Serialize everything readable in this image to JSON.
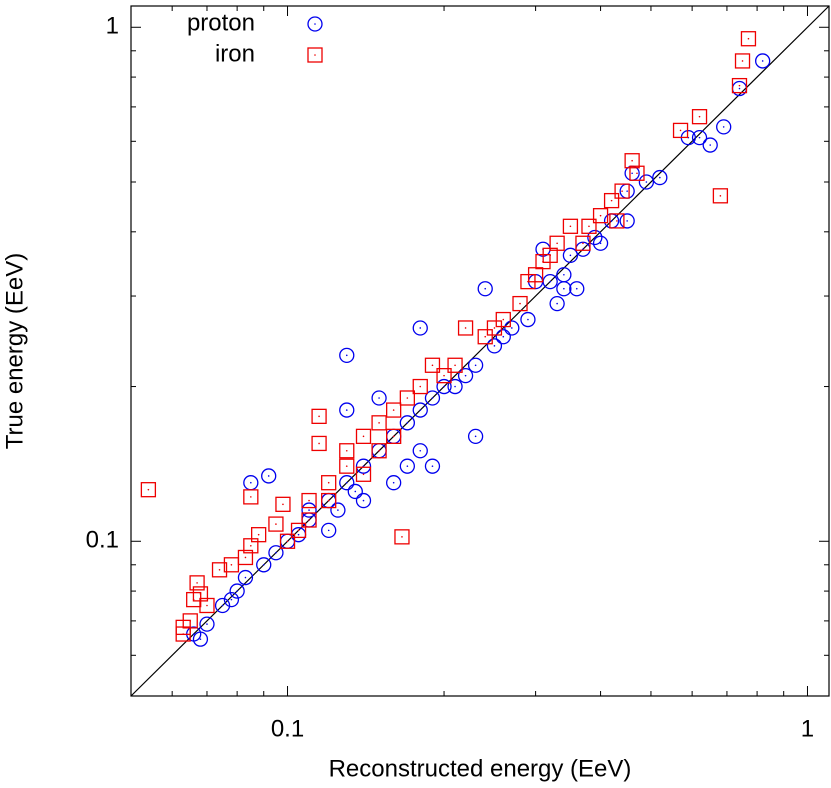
{
  "chart_data": {
    "type": "scatter",
    "xlabel": "Reconstructed energy (EeV)",
    "ylabel": "True energy (EeV)",
    "xscale": "log",
    "yscale": "log",
    "xlim": [
      0.05,
      1.1
    ],
    "ylim": [
      0.05,
      1.1
    ],
    "xticks": [
      0.1,
      1
    ],
    "yticks": [
      0.1,
      1
    ],
    "xminorticks": [
      0.06,
      0.07,
      0.08,
      0.09,
      0.2,
      0.3,
      0.4,
      0.5,
      0.6,
      0.7,
      0.8,
      0.9
    ],
    "yminorticks": [
      0.06,
      0.07,
      0.08,
      0.09,
      0.2,
      0.3,
      0.4,
      0.5,
      0.6,
      0.7,
      0.8,
      0.9
    ],
    "diagonal": true,
    "diagonal_color": "#000000",
    "legend": "top-left",
    "series": [
      {
        "name": "proton",
        "color": "#0000ee",
        "marker": "circle",
        "x": [
          0.82,
          0.74,
          0.69,
          0.65,
          0.62,
          0.59,
          0.52,
          0.49,
          0.46,
          0.45,
          0.45,
          0.42,
          0.4,
          0.39,
          0.37,
          0.35,
          0.34,
          0.34,
          0.33,
          0.36,
          0.32,
          0.31,
          0.3,
          0.29,
          0.27,
          0.26,
          0.25,
          0.24,
          0.23,
          0.22,
          0.21,
          0.2,
          0.19,
          0.18,
          0.18,
          0.17,
          0.16,
          0.23,
          0.15,
          0.15,
          0.14,
          0.19,
          0.13,
          0.13,
          0.13,
          0.12,
          0.12,
          0.11,
          0.105,
          0.1,
          0.095,
          0.092,
          0.085,
          0.09,
          0.083,
          0.08,
          0.078,
          0.075,
          0.07,
          0.066,
          0.068,
          0.11,
          0.14,
          0.16,
          0.17,
          0.18,
          0.125,
          0.135
        ],
        "values": [
          0.86,
          0.76,
          0.64,
          0.59,
          0.61,
          0.61,
          0.51,
          0.5,
          0.52,
          0.42,
          0.48,
          0.42,
          0.38,
          0.39,
          0.37,
          0.36,
          0.33,
          0.31,
          0.29,
          0.31,
          0.32,
          0.37,
          0.32,
          0.27,
          0.26,
          0.25,
          0.24,
          0.31,
          0.22,
          0.21,
          0.2,
          0.2,
          0.19,
          0.26,
          0.18,
          0.17,
          0.16,
          0.16,
          0.19,
          0.15,
          0.14,
          0.14,
          0.23,
          0.18,
          0.13,
          0.12,
          0.105,
          0.11,
          0.103,
          0.1,
          0.095,
          0.134,
          0.13,
          0.09,
          0.085,
          0.08,
          0.077,
          0.075,
          0.069,
          0.066,
          0.0645,
          0.115,
          0.12,
          0.13,
          0.14,
          0.15,
          0.115,
          0.125
        ]
      },
      {
        "name": "iron",
        "color": "#ee0000",
        "marker": "square",
        "x": [
          0.77,
          0.75,
          0.74,
          0.62,
          0.57,
          0.68,
          0.47,
          0.46,
          0.44,
          0.42,
          0.43,
          0.4,
          0.38,
          0.37,
          0.35,
          0.33,
          0.32,
          0.31,
          0.3,
          0.29,
          0.28,
          0.26,
          0.25,
          0.24,
          0.22,
          0.21,
          0.2,
          0.19,
          0.18,
          0.17,
          0.16,
          0.15,
          0.14,
          0.115,
          0.115,
          0.13,
          0.13,
          0.12,
          0.12,
          0.11,
          0.11,
          0.105,
          0.1,
          0.166,
          0.098,
          0.085,
          0.054,
          0.088,
          0.085,
          0.083,
          0.078,
          0.074,
          0.067,
          0.068,
          0.066,
          0.07,
          0.065,
          0.063,
          0.063,
          0.095,
          0.14,
          0.15,
          0.16
        ],
        "values": [
          0.95,
          0.86,
          0.77,
          0.67,
          0.63,
          0.47,
          0.52,
          0.55,
          0.48,
          0.46,
          0.42,
          0.43,
          0.41,
          0.38,
          0.41,
          0.38,
          0.36,
          0.35,
          0.33,
          0.32,
          0.29,
          0.27,
          0.26,
          0.25,
          0.26,
          0.22,
          0.21,
          0.22,
          0.2,
          0.19,
          0.18,
          0.17,
          0.16,
          0.175,
          0.155,
          0.15,
          0.14,
          0.13,
          0.12,
          0.12,
          0.11,
          0.105,
          0.1,
          0.102,
          0.118,
          0.122,
          0.126,
          0.103,
          0.098,
          0.093,
          0.09,
          0.088,
          0.083,
          0.079,
          0.077,
          0.075,
          0.07,
          0.066,
          0.068,
          0.108,
          0.135,
          0.15,
          0.16
        ]
      }
    ]
  }
}
